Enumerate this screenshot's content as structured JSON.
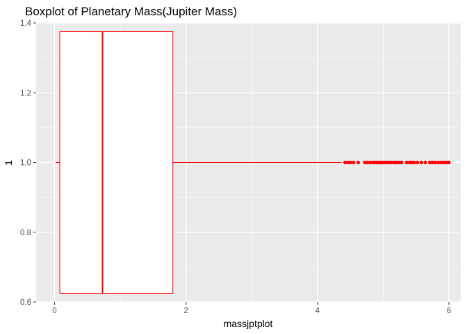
{
  "chart_data": {
    "type": "boxplot",
    "title": "Boxplot of Planetary Mass(Jupiter Mass)",
    "xlabel": "massjptplot",
    "ylabel": "1",
    "xlim": [
      -0.28,
      6.18
    ],
    "ylim": [
      0.6,
      1.4
    ],
    "x_ticks": [
      0,
      2,
      4,
      6
    ],
    "x_minor_ticks": [
      1,
      3,
      5
    ],
    "y_ticks": [
      0.6,
      0.8,
      1.0,
      1.2,
      1.4
    ],
    "y_tick_labels": [
      "0.6",
      "0.8",
      "1.0",
      "1.2",
      "1.4"
    ],
    "y_minor_ticks": [
      0.7,
      0.9,
      1.1,
      1.3
    ],
    "grid": true,
    "orientation": "horizontal",
    "box": {
      "group_y": 1.0,
      "y_lower": 0.625,
      "y_upper": 1.375,
      "whisker_low": 0.02,
      "q1": 0.08,
      "median": 0.73,
      "q3": 1.8,
      "whisker_high": 4.37
    },
    "outliers": [
      4.42,
      4.46,
      4.5,
      4.55,
      4.62,
      4.72,
      4.76,
      4.8,
      4.84,
      4.87,
      4.9,
      4.93,
      4.96,
      4.99,
      5.02,
      5.06,
      5.09,
      5.12,
      5.16,
      5.19,
      5.22,
      5.25,
      5.28,
      5.36,
      5.4,
      5.43,
      5.47,
      5.52,
      5.58,
      5.64,
      5.71,
      5.75,
      5.79,
      5.84,
      5.88,
      5.92,
      5.95,
      5.98,
      6.0
    ],
    "colors": {
      "panel_background": "#ebebeb",
      "grid_major": "#ffffff",
      "box_line": "#ff0000",
      "box_fill": "#ffffff",
      "outlier": "#ff0000"
    }
  }
}
